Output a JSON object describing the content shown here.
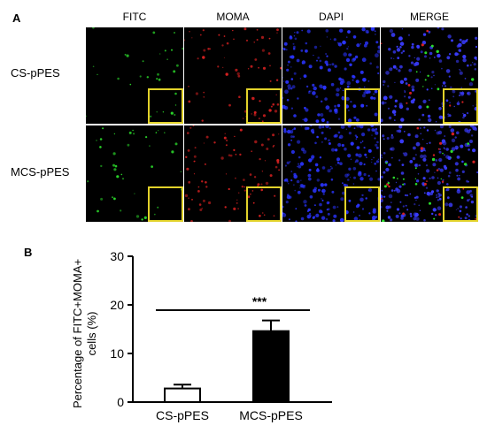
{
  "panel_a": {
    "letter": "A",
    "columns": [
      {
        "label": "FITC",
        "dot_color": "#2bdc2b",
        "density": 0.15
      },
      {
        "label": "MOMA",
        "dot_color": "#d42020",
        "density": 0.35
      },
      {
        "label": "DAPI",
        "dot_color": "#2a34ff",
        "density": 0.9
      },
      {
        "label": "MERGE",
        "dot_color": "#3a3cff",
        "density": 0.85
      }
    ],
    "rows": [
      {
        "label": "CS-pPES"
      },
      {
        "label": "MCS-pPES"
      }
    ],
    "inset_border_color": "#e2d22a"
  },
  "panel_b": {
    "letter": "B"
  },
  "chart_data": {
    "type": "bar",
    "categories": [
      "CS-pPES",
      "MCS-pPES"
    ],
    "values": [
      2.8,
      14.6
    ],
    "errors": [
      0.8,
      2.2
    ],
    "bar_fills": [
      "#ffffff",
      "#000000"
    ],
    "ylabel": "Percentage of FITC+MOMA+ cells (%)",
    "ylabel_lines": [
      "Percentage of FITC+MOMA+",
      "cells (%)"
    ],
    "ylim": [
      0,
      30
    ],
    "yticks": [
      0,
      10,
      20,
      30
    ],
    "significance": "***",
    "xlabel": "",
    "title": ""
  }
}
